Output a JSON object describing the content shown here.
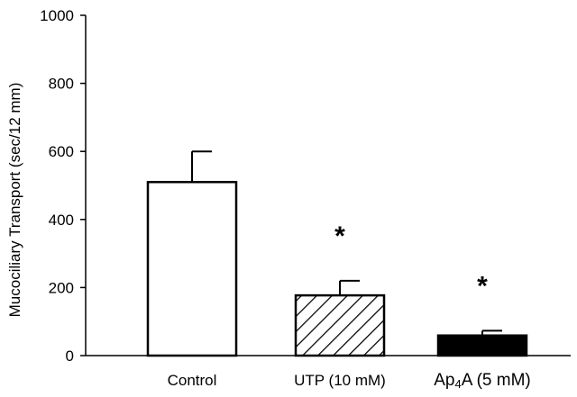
{
  "chart_data": {
    "type": "bar",
    "categories": [
      "Control",
      "UTP (10 mM)",
      "Ap4A (5 mM)"
    ],
    "category_parts": [
      [
        {
          "text": "Control"
        }
      ],
      [
        {
          "text": "UTP (10 mM)"
        }
      ],
      [
        {
          "text": "Ap"
        },
        {
          "text": "4",
          "sub": true
        },
        {
          "text": "A (5 mM)"
        }
      ]
    ],
    "values": [
      510,
      177,
      59
    ],
    "errors": [
      90,
      43,
      14
    ],
    "significance": [
      "",
      "*",
      "*"
    ],
    "bar_fills": [
      "white",
      "hatched",
      "black"
    ],
    "title": "",
    "xlabel": "",
    "ylabel": "Mucociliary Transport (sec/12 mm)",
    "ylim": [
      0,
      1000
    ],
    "yticks": [
      0,
      200,
      400,
      600,
      800,
      1000
    ],
    "grid": false,
    "colors": {
      "bar_stroke": "#000000",
      "solid_fill": "#000000",
      "empty_fill": "#ffffff"
    }
  }
}
